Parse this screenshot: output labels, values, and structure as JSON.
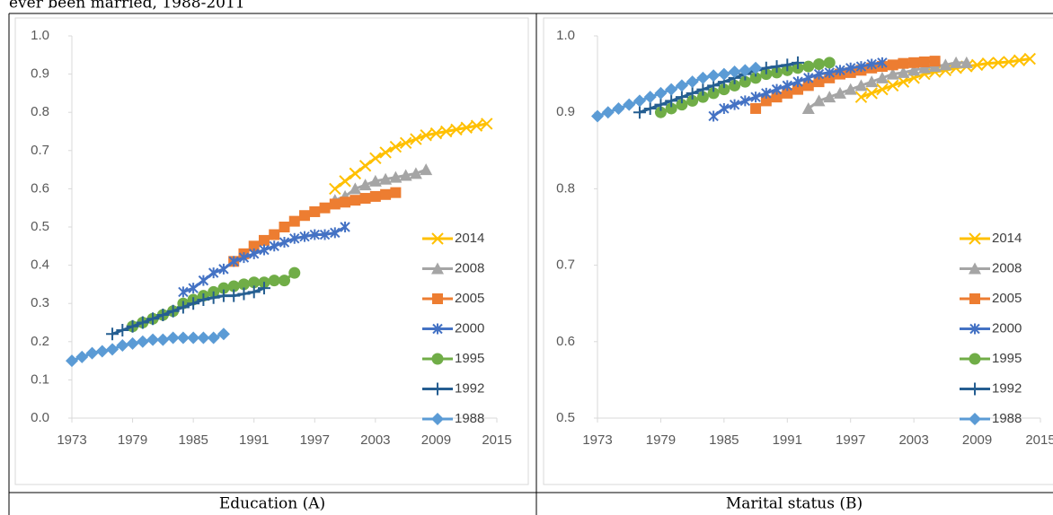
{
  "heading": "ever been married, 1988-2011",
  "chart_data": [
    {
      "type": "line",
      "caption": "Education (A)",
      "legend": "right",
      "ylim": [
        0,
        1
      ],
      "yticks": [
        {
          "value": 0,
          "label": "0.0"
        },
        0.1,
        0.2,
        0.3,
        0.4,
        0.5,
        0.6,
        0.7,
        0.8,
        0.9,
        {
          "value": 1,
          "label": "1.0"
        }
      ],
      "xlim": [
        1973,
        2015
      ],
      "xticks": [
        1973,
        1979,
        1985,
        1991,
        1997,
        2003,
        2009,
        2015
      ],
      "series": [
        {
          "name": "2014",
          "color": "#ffc000",
          "marker": "x",
          "x": [
            1999,
            2000,
            2001,
            2002,
            2003,
            2004,
            2005,
            2006,
            2007,
            2008,
            2009,
            2010,
            2011,
            2012,
            2013,
            2014
          ],
          "values": [
            0.6,
            0.62,
            0.64,
            0.66,
            0.68,
            0.695,
            0.71,
            0.72,
            0.73,
            0.74,
            0.745,
            0.75,
            0.755,
            0.76,
            0.765,
            0.77
          ]
        },
        {
          "name": "2008",
          "color": "#a5a5a5",
          "marker": "triangle",
          "x": [
            1999,
            2000,
            2001,
            2002,
            2003,
            2004,
            2005,
            2006,
            2007,
            2008
          ],
          "values": [
            0.57,
            0.58,
            0.6,
            0.61,
            0.62,
            0.625,
            0.63,
            0.635,
            0.64,
            0.65
          ]
        },
        {
          "name": "2005",
          "color": "#ed7d31",
          "marker": "square",
          "x": [
            1989,
            1990,
            1991,
            1992,
            1993,
            1994,
            1995,
            1996,
            1997,
            1998,
            1999,
            2000,
            2001,
            2002,
            2003,
            2004,
            2005
          ],
          "values": [
            0.41,
            0.43,
            0.45,
            0.465,
            0.48,
            0.5,
            0.515,
            0.53,
            0.54,
            0.55,
            0.56,
            0.565,
            0.57,
            0.575,
            0.58,
            0.585,
            0.59
          ]
        },
        {
          "name": "2000",
          "color": "#4472c4",
          "marker": "asterisk",
          "x": [
            1984,
            1985,
            1986,
            1987,
            1988,
            1989,
            1990,
            1991,
            1992,
            1993,
            1994,
            1995,
            1996,
            1997,
            1998,
            1999,
            2000
          ],
          "values": [
            0.33,
            0.34,
            0.36,
            0.38,
            0.39,
            0.41,
            0.42,
            0.43,
            0.44,
            0.45,
            0.46,
            0.47,
            0.475,
            0.48,
            0.48,
            0.485,
            0.5
          ]
        },
        {
          "name": "1995",
          "color": "#70ad47",
          "marker": "circle",
          "x": [
            1979,
            1980,
            1981,
            1982,
            1983,
            1984,
            1985,
            1986,
            1987,
            1988,
            1989,
            1990,
            1991,
            1992,
            1993,
            1994,
            1995
          ],
          "values": [
            0.24,
            0.25,
            0.26,
            0.27,
            0.28,
            0.3,
            0.31,
            0.32,
            0.33,
            0.34,
            0.345,
            0.35,
            0.355,
            0.355,
            0.36,
            0.36,
            0.38
          ]
        },
        {
          "name": "1992",
          "color": "#255e91",
          "marker": "plus",
          "x": [
            1977,
            1978,
            1979,
            1980,
            1981,
            1982,
            1983,
            1984,
            1985,
            1986,
            1987,
            1988,
            1989,
            1990,
            1991,
            1992
          ],
          "values": [
            0.22,
            0.23,
            0.24,
            0.25,
            0.26,
            0.27,
            0.28,
            0.29,
            0.3,
            0.31,
            0.315,
            0.32,
            0.32,
            0.325,
            0.33,
            0.34
          ]
        },
        {
          "name": "1988",
          "color": "#5b9bd5",
          "marker": "diamond",
          "x": [
            1973,
            1974,
            1975,
            1976,
            1977,
            1978,
            1979,
            1980,
            1981,
            1982,
            1983,
            1984,
            1985,
            1986,
            1987,
            1988
          ],
          "values": [
            0.15,
            0.16,
            0.17,
            0.175,
            0.18,
            0.19,
            0.195,
            0.2,
            0.205,
            0.205,
            0.21,
            0.21,
            0.21,
            0.21,
            0.21,
            0.22
          ]
        }
      ]
    },
    {
      "type": "line",
      "caption": "Marital status (B)",
      "legend": "right",
      "ylim": [
        0.5,
        1
      ],
      "yticks": [
        0.5,
        0.6,
        0.7,
        0.8,
        0.9,
        {
          "value": 1,
          "label": "1.0"
        }
      ],
      "xlim": [
        1973,
        2015
      ],
      "xticks": [
        1973,
        1979,
        1985,
        1991,
        1997,
        2003,
        2009,
        2015
      ],
      "series": [
        {
          "name": "2014",
          "color": "#ffc000",
          "marker": "x",
          "x": [
            1998,
            1999,
            2000,
            2001,
            2002,
            2003,
            2004,
            2005,
            2006,
            2007,
            2008,
            2009,
            2010,
            2011,
            2012,
            2013,
            2014
          ],
          "values": [
            0.92,
            0.925,
            0.93,
            0.935,
            0.94,
            0.945,
            0.95,
            0.953,
            0.955,
            0.958,
            0.96,
            0.962,
            0.964,
            0.965,
            0.966,
            0.968,
            0.97
          ]
        },
        {
          "name": "2008",
          "color": "#a5a5a5",
          "marker": "triangle",
          "x": [
            1993,
            1994,
            1995,
            1996,
            1997,
            1998,
            1999,
            2000,
            2001,
            2002,
            2003,
            2004,
            2005,
            2006,
            2007,
            2008
          ],
          "values": [
            0.905,
            0.915,
            0.92,
            0.925,
            0.93,
            0.935,
            0.94,
            0.945,
            0.95,
            0.952,
            0.955,
            0.958,
            0.96,
            0.962,
            0.965,
            0.965
          ]
        },
        {
          "name": "2005",
          "color": "#ed7d31",
          "marker": "square",
          "x": [
            1988,
            1989,
            1990,
            1991,
            1992,
            1993,
            1994,
            1995,
            1996,
            1997,
            1998,
            1999,
            2000,
            2001,
            2002,
            2003,
            2004,
            2005
          ],
          "values": [
            0.905,
            0.915,
            0.92,
            0.925,
            0.93,
            0.935,
            0.94,
            0.945,
            0.95,
            0.952,
            0.955,
            0.958,
            0.96,
            0.962,
            0.964,
            0.965,
            0.966,
            0.967
          ]
        },
        {
          "name": "2000",
          "color": "#4472c4",
          "marker": "asterisk",
          "x": [
            1984,
            1985,
            1986,
            1987,
            1988,
            1989,
            1990,
            1991,
            1992,
            1993,
            1994,
            1995,
            1996,
            1997,
            1998,
            1999,
            2000
          ],
          "values": [
            0.895,
            0.905,
            0.91,
            0.915,
            0.92,
            0.925,
            0.93,
            0.935,
            0.94,
            0.945,
            0.95,
            0.952,
            0.955,
            0.958,
            0.96,
            0.963,
            0.965
          ]
        },
        {
          "name": "1995",
          "color": "#70ad47",
          "marker": "circle",
          "x": [
            1979,
            1980,
            1981,
            1982,
            1983,
            1984,
            1985,
            1986,
            1987,
            1988,
            1989,
            1990,
            1991,
            1992,
            1993,
            1994,
            1995
          ],
          "values": [
            0.9,
            0.905,
            0.91,
            0.915,
            0.92,
            0.925,
            0.93,
            0.935,
            0.94,
            0.945,
            0.95,
            0.952,
            0.955,
            0.958,
            0.96,
            0.963,
            0.965
          ]
        },
        {
          "name": "1992",
          "color": "#255e91",
          "marker": "plus",
          "x": [
            1977,
            1978,
            1979,
            1980,
            1981,
            1982,
            1983,
            1984,
            1985,
            1986,
            1987,
            1988,
            1989,
            1990,
            1991,
            1992
          ],
          "values": [
            0.9,
            0.905,
            0.91,
            0.915,
            0.92,
            0.925,
            0.93,
            0.935,
            0.94,
            0.945,
            0.95,
            0.955,
            0.958,
            0.96,
            0.962,
            0.965
          ]
        },
        {
          "name": "1988",
          "color": "#5b9bd5",
          "marker": "diamond",
          "x": [
            1973,
            1974,
            1975,
            1976,
            1977,
            1978,
            1979,
            1980,
            1981,
            1982,
            1983,
            1984,
            1985,
            1986,
            1987,
            1988
          ],
          "values": [
            0.895,
            0.9,
            0.905,
            0.91,
            0.915,
            0.92,
            0.925,
            0.93,
            0.935,
            0.94,
            0.945,
            0.948,
            0.95,
            0.953,
            0.955,
            0.958
          ]
        }
      ]
    }
  ]
}
